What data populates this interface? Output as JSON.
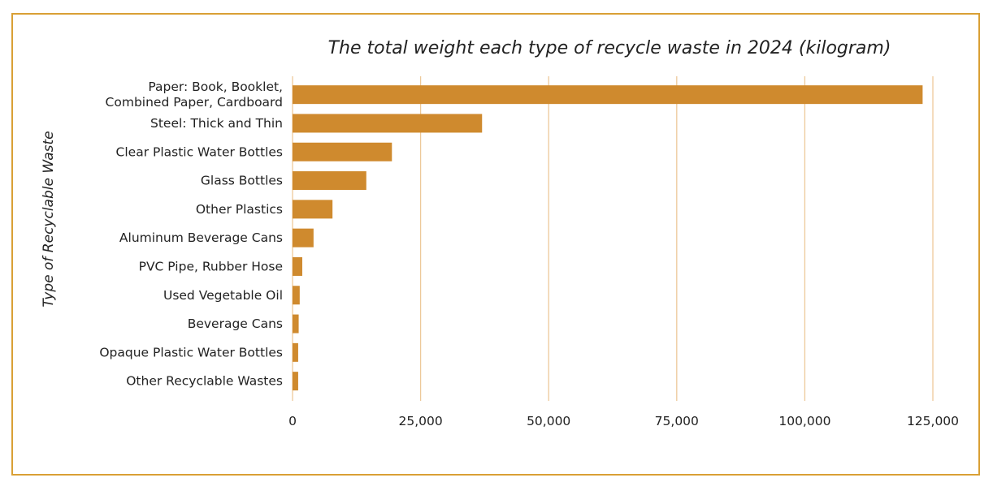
{
  "chart_data": {
    "type": "bar",
    "orientation": "horizontal",
    "title": "The total weight each type of recycle waste in 2024 (kilogram)",
    "xlabel": "",
    "ylabel": "Type of Recyclable Waste",
    "categories": [
      [
        "Paper: Book, Booklet,",
        "Combined Paper, Cardboard"
      ],
      [
        "Steel: Thick and Thin"
      ],
      [
        "Clear Plastic Water Bottles"
      ],
      [
        "Glass Bottles"
      ],
      [
        "Other Plastics"
      ],
      [
        "Aluminum Beverage Cans"
      ],
      [
        "PVC Pipe, Rubber Hose"
      ],
      [
        "Used Vegetable Oil"
      ],
      [
        "Beverage Cans"
      ],
      [
        "Opaque Plastic Water Bottles"
      ],
      [
        "Other Recyclable Wastes"
      ]
    ],
    "values": [
      123000,
      37000,
      19400,
      14400,
      7800,
      4100,
      1900,
      1400,
      1200,
      1100,
      1100
    ],
    "xlim": [
      0,
      125000
    ],
    "xticks": [
      0,
      25000,
      50000,
      75000,
      100000,
      125000
    ],
    "xtick_labels": [
      "0",
      "25,000",
      "50,000",
      "75,000",
      "100,000",
      "125,000"
    ],
    "grid": "vertical",
    "colors": {
      "bar": "#cf8a2e",
      "grid": "#edc99a",
      "frame": "#d9a035"
    }
  }
}
